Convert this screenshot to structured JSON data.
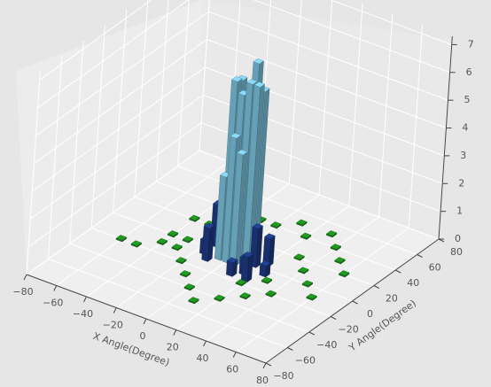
{
  "chart_data": {
    "type": "bar3d",
    "x_label": "X Angle(Degree)",
    "y_label": "Y Angle(Degree)",
    "xlim": [
      -80,
      80
    ],
    "ylim": [
      -80,
      80
    ],
    "zlim": [
      0,
      7.3
    ],
    "xticks": [
      {
        "value": -80,
        "label": "−80"
      },
      {
        "value": -60,
        "label": "−60"
      },
      {
        "value": -40,
        "label": "−40"
      },
      {
        "value": -20,
        "label": "−20"
      },
      0,
      20,
      40,
      60,
      80
    ],
    "yticks": [
      {
        "value": -80,
        "label": "−80"
      },
      {
        "value": -60,
        "label": "−60"
      },
      {
        "value": -40,
        "label": "−40"
      },
      {
        "value": -20,
        "label": "−20"
      },
      0,
      20,
      40,
      60,
      80
    ],
    "zticks": [
      0,
      1,
      2,
      3,
      4,
      5,
      6,
      7
    ],
    "grid": true,
    "series": [
      {
        "color": "#1e8c1e",
        "x": [
          -60,
          -50,
          -40,
          -30,
          -40,
          -20,
          -10,
          0,
          10,
          20,
          30,
          40,
          50,
          60,
          40,
          50,
          60,
          40,
          30,
          20,
          10,
          0,
          -10,
          -20,
          -30,
          -20,
          -10,
          30,
          20,
          -30,
          30,
          -40
        ],
        "y": [
          -20,
          -20,
          -10,
          0,
          20,
          30,
          40,
          40,
          50,
          40,
          50,
          40,
          30,
          20,
          10,
          0,
          -10,
          -20,
          -30,
          -40,
          -50,
          -40,
          -30,
          -20,
          -10,
          10,
          20,
          20,
          -20,
          20,
          -10,
          0
        ],
        "values": [
          0.05,
          0.05,
          0.05,
          0.05,
          0.05,
          0.05,
          0.05,
          0.05,
          0.05,
          0.05,
          0.05,
          0.05,
          0.05,
          0.05,
          0.05,
          0.05,
          0.05,
          0.05,
          0.05,
          0.05,
          0.05,
          0.05,
          0.05,
          0.05,
          0.05,
          0.05,
          0.05,
          0.05,
          0.05,
          0.05,
          0.05,
          0.05
        ]
      },
      {
        "color": "#1f3c88",
        "x": [
          -15,
          -10,
          15,
          20,
          -10,
          15,
          20,
          -15,
          10,
          25
        ],
        "y": [
          5,
          -10,
          0,
          5,
          10,
          -10,
          -15,
          -5,
          -15,
          -5
        ],
        "values": [
          1.5,
          1.2,
          1.4,
          1.0,
          0.8,
          0.6,
          0.9,
          0.5,
          0.5,
          0.4
        ]
      },
      {
        "color": "#7ec8e3",
        "x": [
          -5,
          0,
          5,
          10,
          -5,
          0,
          5,
          10,
          0,
          5,
          -5
        ],
        "y": [
          5,
          5,
          5,
          5,
          0,
          0,
          0,
          0,
          -5,
          -5,
          -5
        ],
        "values": [
          6.2,
          5.8,
          7.0,
          6.1,
          6.3,
          5.9,
          6.4,
          6.4,
          4.5,
          4.0,
          3.0
        ]
      }
    ]
  }
}
